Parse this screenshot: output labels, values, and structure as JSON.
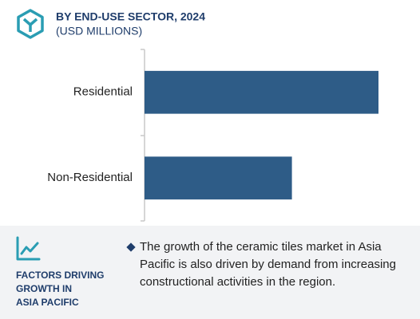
{
  "chart_data": {
    "type": "bar",
    "orientation": "horizontal",
    "title": "BY END-USE SECTOR, 2024",
    "subtitle": "(USD MILLIONS)",
    "categories": [
      "Residential",
      "Non-Residential"
    ],
    "values": [
      100,
      63
    ],
    "color": "#2e5c87",
    "xlim": [
      0,
      100
    ]
  },
  "panel": {
    "heading_lines": [
      "FACTORS DRIVING",
      "GROWTH IN",
      "ASIA PACIFIC"
    ],
    "text": "The growth of the ceramic tiles market in Asia Pacific is also driven by demand from increasing constructional activities in the region."
  }
}
